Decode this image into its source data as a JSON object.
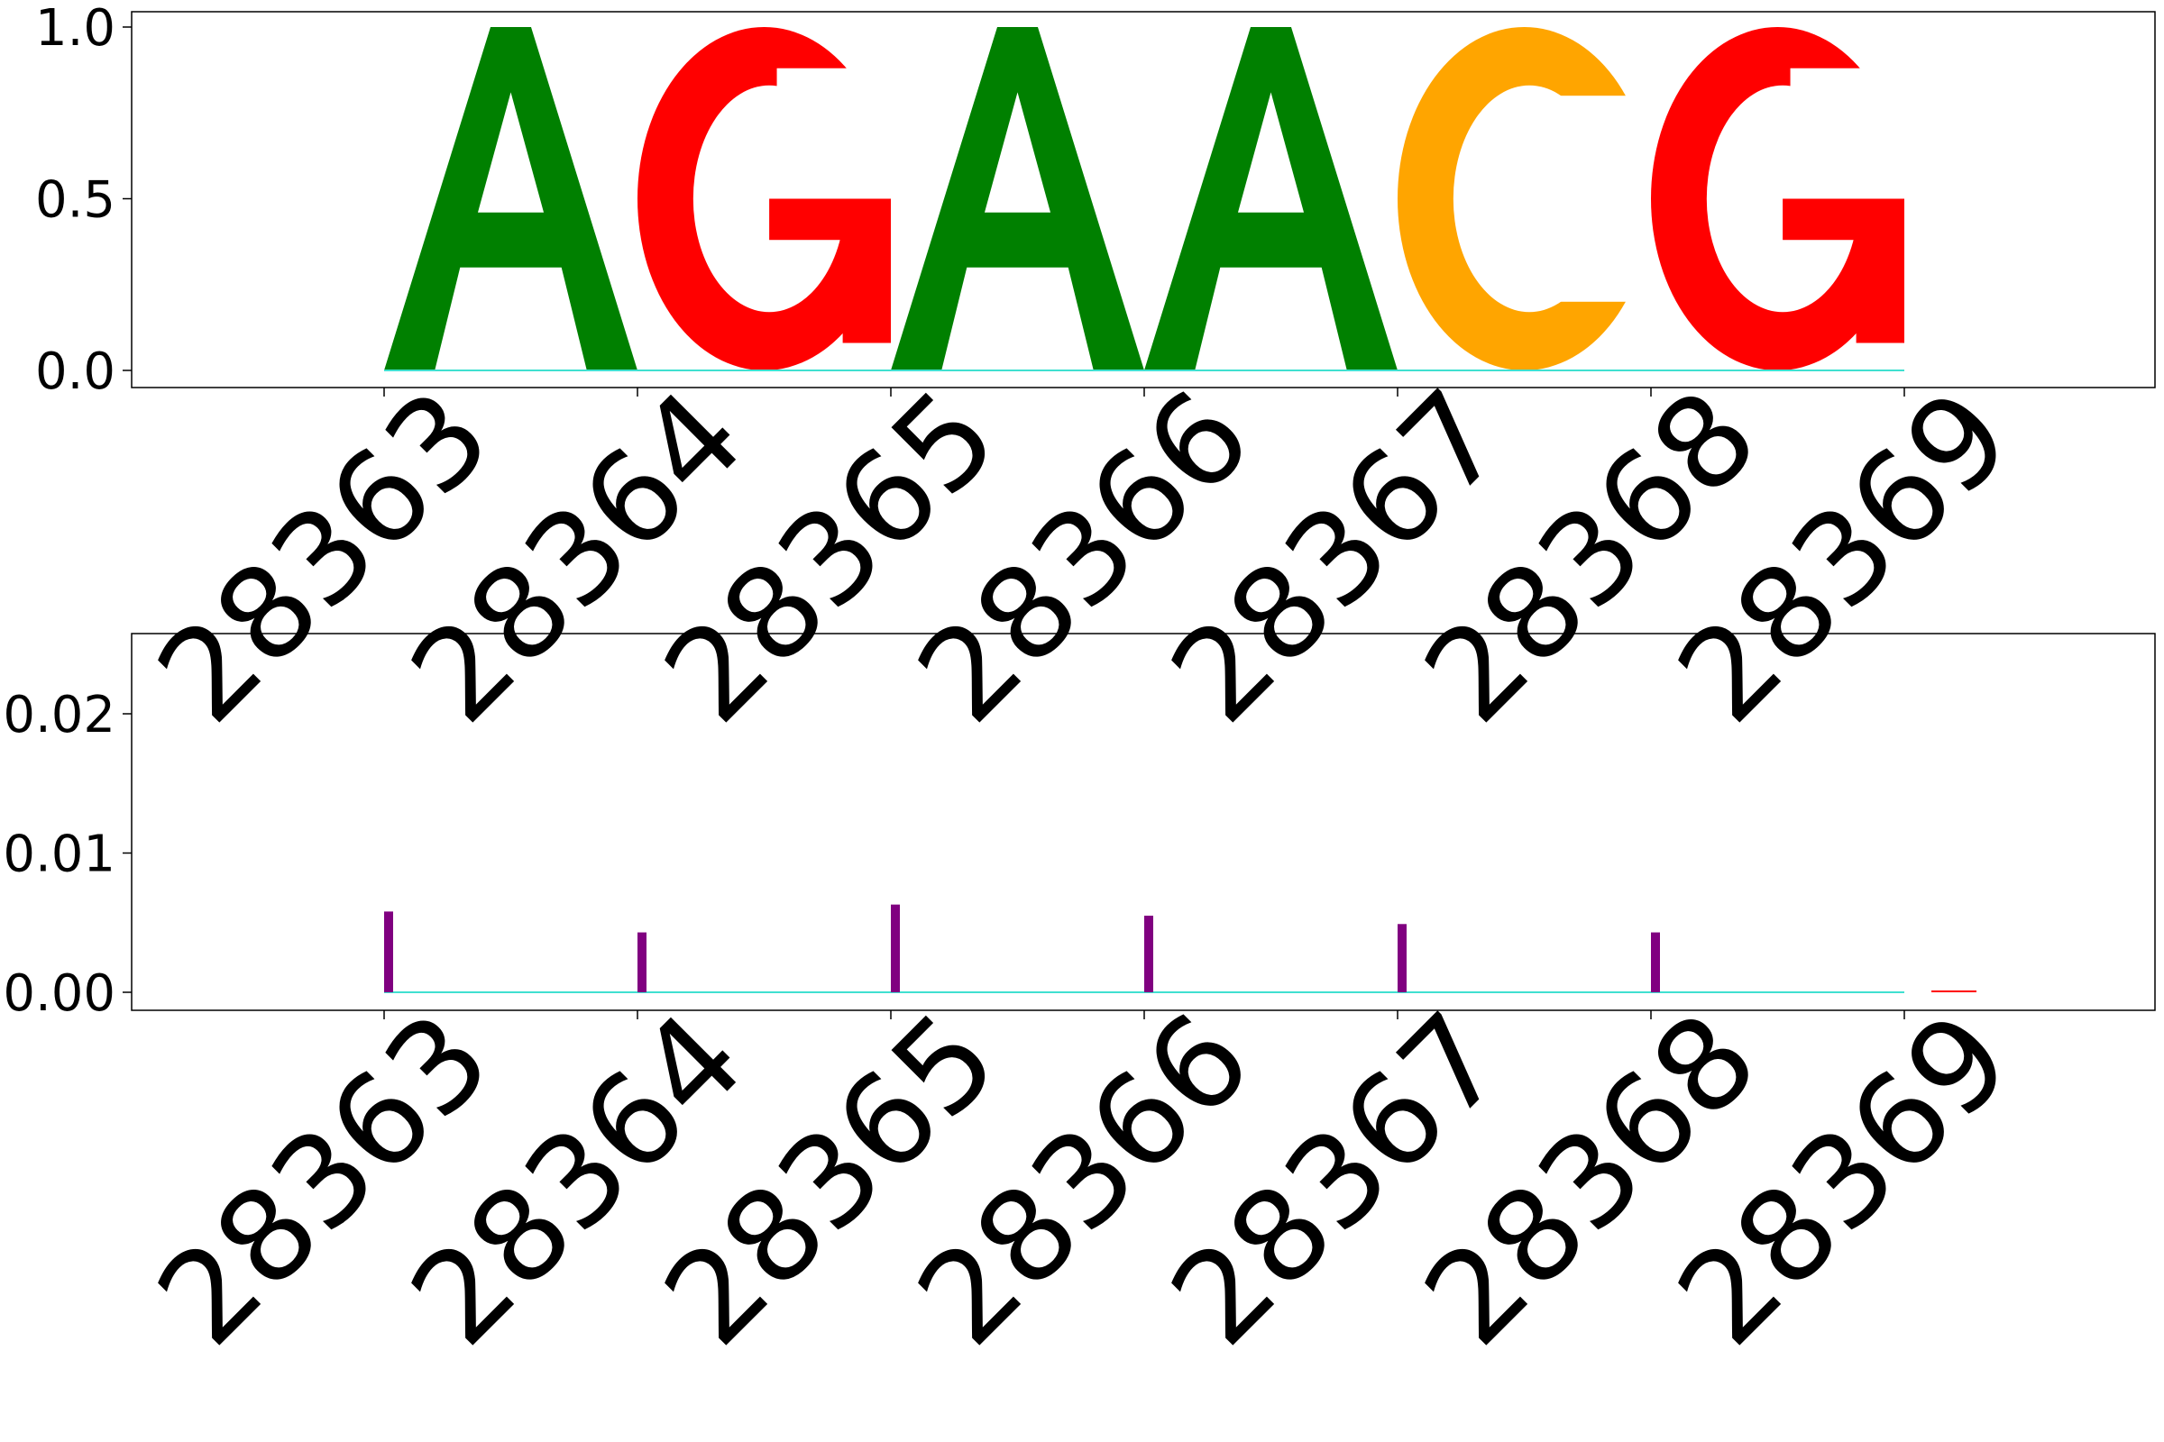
{
  "chart_data": [
    {
      "type": "sequence-logo",
      "x": [
        "28363",
        "28364",
        "28365",
        "28366",
        "28367",
        "28368",
        "28369"
      ],
      "letters": [
        {
          "pos": "28363",
          "letter": "A",
          "height": 1.0,
          "color": "#008000"
        },
        {
          "pos": "28364",
          "letter": "G",
          "height": 1.0,
          "color": "#ff0000"
        },
        {
          "pos": "28365",
          "letter": "A",
          "height": 1.0,
          "color": "#008000"
        },
        {
          "pos": "28366",
          "letter": "A",
          "height": 1.0,
          "color": "#008000"
        },
        {
          "pos": "28367",
          "letter": "C",
          "height": 1.0,
          "color": "#ffa500"
        },
        {
          "pos": "28368",
          "letter": "G",
          "height": 1.0,
          "color": "#ff0000"
        }
      ],
      "baseline_color": "#40e0d0",
      "ylim": [
        0,
        1.0
      ],
      "yticks": [
        "0.0",
        "0.5",
        "1.0"
      ],
      "yticks_values": [
        0.0,
        0.5,
        1.0
      ]
    },
    {
      "type": "bar",
      "x": [
        "28363",
        "28364",
        "28365",
        "28366",
        "28367",
        "28368",
        "28369"
      ],
      "values": [
        0.0058,
        0.0043,
        0.0063,
        0.0055,
        0.0049,
        0.0043,
        0.0001
      ],
      "bar_colors": [
        "#800080",
        "#800080",
        "#800080",
        "#800080",
        "#800080",
        "#800080",
        "#ff0000"
      ],
      "baseline_color": "#40e0d0",
      "ylim": [
        -0.0012,
        0.026
      ],
      "yticks": [
        "0.00",
        "0.01",
        "0.02"
      ],
      "yticks_values": [
        0.0,
        0.01,
        0.02
      ]
    }
  ]
}
